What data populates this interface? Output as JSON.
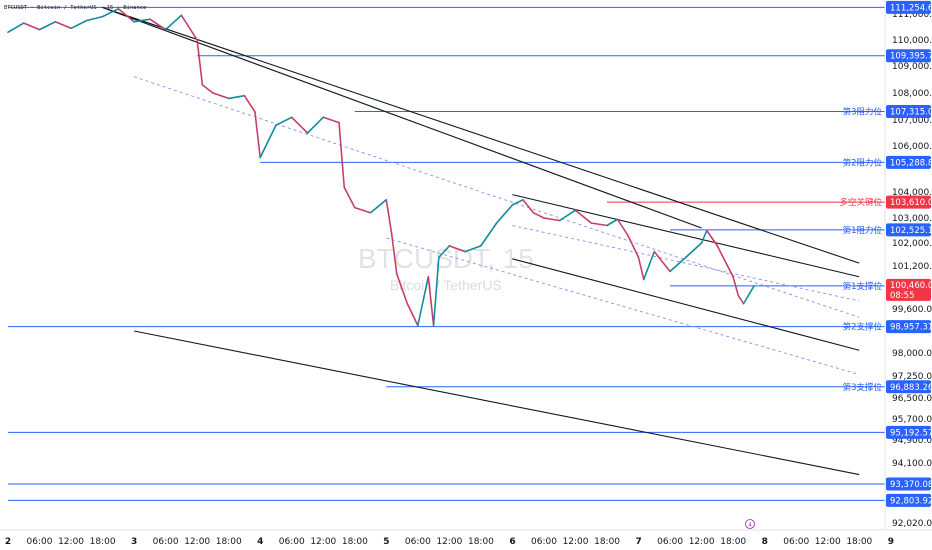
{
  "header": {
    "symbol_line": "BTCUSDT · Bitcoin / TetherUS · 15 · Binance"
  },
  "watermark": {
    "title": "BTCUSDT, 15",
    "subtitle": "Bitcoin / TetherUS"
  },
  "countdown": "08:55",
  "event_marker": "4",
  "colors": {
    "level": "#2962ff",
    "key": "#f23645",
    "candle_up": "#089981",
    "candle_down": "#f23645",
    "channel": "#131722",
    "dashed": "#8e8ee8"
  },
  "chart_data": {
    "type": "line",
    "y_axis_ticks": [
      111000,
      110000,
      109000,
      108000,
      107000,
      106000,
      104000,
      103000,
      102000,
      101200,
      99600,
      98000,
      97250,
      96500,
      95700,
      94900,
      94100,
      92020
    ],
    "y_axis_tick_labels": [
      "111,000.00",
      "110,000.00",
      "109,000.00",
      "108,000.00",
      "107,000.00",
      "106,000.00",
      "104,000.00",
      "103,000.00",
      "102,000.00",
      "101,200.00",
      "99,600.00",
      "98,000.00",
      "97,250.00",
      "96,500.00",
      "95,700.00",
      "94,900.00",
      "94,100.00",
      "92,020.00"
    ],
    "x_axis_ticks": [
      "2",
      "06:00",
      "12:00",
      "18:00",
      "3",
      "06:00",
      "12:00",
      "18:00",
      "4",
      "06:00",
      "12:00",
      "18:00",
      "5",
      "06:00",
      "12:00",
      "18:00",
      "6",
      "06:00",
      "12:00",
      "18:00",
      "7",
      "06:00",
      "12:00",
      "18:00",
      "8",
      "06:00",
      "12:00",
      "18:00",
      "9"
    ],
    "current_price": {
      "value": 100460.01,
      "label": "100,460.01"
    },
    "levels": [
      {
        "value": 111254.61,
        "label": "111,254.61",
        "name": "",
        "start": "2"
      },
      {
        "value": 109395.71,
        "label": "109,395.71",
        "name": "",
        "start": "3 12:00"
      },
      {
        "value": 107315.01,
        "label": "107,315.01",
        "name": "第3阻力位",
        "start": "4 18:00"
      },
      {
        "value": 105288.86,
        "label": "105,288.86",
        "name": "第2阻力位",
        "start": "4"
      },
      {
        "value": 103610.0,
        "label": "103,610.00",
        "name": "多空关键位",
        "start": "6 18:00",
        "key": true
      },
      {
        "value": 102525.11,
        "label": "102,525.11",
        "name": "第1阻力位",
        "start": "7 06:00"
      },
      {
        "value": 100460.01,
        "label": "",
        "name": "第1支撑位",
        "start": "7 06:00"
      },
      {
        "value": 98957.31,
        "label": "98,957.31",
        "name": "第2支撑位",
        "start": "2"
      },
      {
        "value": 96883.26,
        "label": "96,883.26",
        "name": "第3支撑位",
        "start": "5"
      },
      {
        "value": 95192.57,
        "label": "95,192.57",
        "name": "",
        "start": "2"
      },
      {
        "value": 93370.08,
        "label": "93,370.08",
        "name": "",
        "start": "2"
      },
      {
        "value": 92803.92,
        "label": "92,803.92",
        "name": "",
        "start": "2"
      }
    ],
    "price_path": [
      [
        "2 00:00",
        110300
      ],
      [
        "2 03:00",
        110650
      ],
      [
        "2 06:00",
        110400
      ],
      [
        "2 09:00",
        110700
      ],
      [
        "2 12:00",
        110450
      ],
      [
        "2 15:00",
        110750
      ],
      [
        "2 18:00",
        110900
      ],
      [
        "2 21:00",
        111200
      ],
      [
        "3 00:00",
        110700
      ],
      [
        "3 03:00",
        110800
      ],
      [
        "3 06:00",
        110400
      ],
      [
        "3 09:00",
        110950
      ],
      [
        "3 12:00",
        110000
      ],
      [
        "3 13:00",
        108300
      ],
      [
        "3 15:00",
        108000
      ],
      [
        "3 18:00",
        107800
      ],
      [
        "3 21:00",
        107900
      ],
      [
        "3 23:00",
        107300
      ],
      [
        "4 00:00",
        105500
      ],
      [
        "4 03:00",
        106800
      ],
      [
        "4 06:00",
        107100
      ],
      [
        "4 09:00",
        106500
      ],
      [
        "4 12:00",
        107100
      ],
      [
        "4 15:00",
        106900
      ],
      [
        "4 16:00",
        104200
      ],
      [
        "4 18:00",
        103400
      ],
      [
        "4 21:00",
        103200
      ],
      [
        "5 00:00",
        103700
      ],
      [
        "5 01:00",
        102400
      ],
      [
        "5 02:00",
        100900
      ],
      [
        "5 04:00",
        99800
      ],
      [
        "5 06:00",
        99000
      ],
      [
        "5 08:00",
        100800
      ],
      [
        "5 09:00",
        99000
      ],
      [
        "5 10:00",
        101500
      ],
      [
        "5 12:00",
        101900
      ],
      [
        "5 15:00",
        101700
      ],
      [
        "5 18:00",
        101900
      ],
      [
        "5 21:00",
        102800
      ],
      [
        "6 00:00",
        103500
      ],
      [
        "6 02:00",
        103700
      ],
      [
        "6 04:00",
        103200
      ],
      [
        "6 06:00",
        103000
      ],
      [
        "6 09:00",
        102900
      ],
      [
        "6 12:00",
        103300
      ],
      [
        "6 15:00",
        102800
      ],
      [
        "6 18:00",
        102700
      ],
      [
        "6 20:00",
        102950
      ],
      [
        "6 22:00",
        102300
      ],
      [
        "7 00:00",
        101500
      ],
      [
        "7 01:00",
        100700
      ],
      [
        "7 03:00",
        101700
      ],
      [
        "7 06:00",
        101000
      ],
      [
        "7 09:00",
        101500
      ],
      [
        "7 12:00",
        102000
      ],
      [
        "7 13:00",
        102500
      ],
      [
        "7 15:00",
        101900
      ],
      [
        "7 18:00",
        100800
      ],
      [
        "7 19:00",
        100100
      ],
      [
        "7 20:00",
        99800
      ],
      [
        "7 22:00",
        100460
      ]
    ],
    "trend_lines": [
      {
        "from": [
          "2 18:00",
          111250
        ],
        "to": [
          "8 18:00",
          101300
        ]
      },
      {
        "from": [
          "2 18:00",
          111250
        ],
        "to": [
          "7 12:00",
          102600
        ]
      },
      {
        "from": [
          "6 00:00",
          103900
        ],
        "to": [
          "8 18:00",
          100800
        ]
      },
      {
        "from": [
          "6 00:00",
          101450
        ],
        "to": [
          "8 18:00",
          98100
        ]
      },
      {
        "from": [
          "3 00:00",
          98800
        ],
        "to": [
          "8 18:00",
          93700
        ]
      }
    ],
    "dashed_lines": [
      {
        "from": [
          "3 00:00",
          108600
        ],
        "to": [
          "8 18:00",
          99300
        ]
      },
      {
        "from": [
          "5 00:00",
          102200
        ],
        "to": [
          "8 18:00",
          97300
        ]
      },
      {
        "from": [
          "6 00:00",
          102700
        ],
        "to": [
          "8 18:00",
          99900
        ]
      }
    ]
  }
}
